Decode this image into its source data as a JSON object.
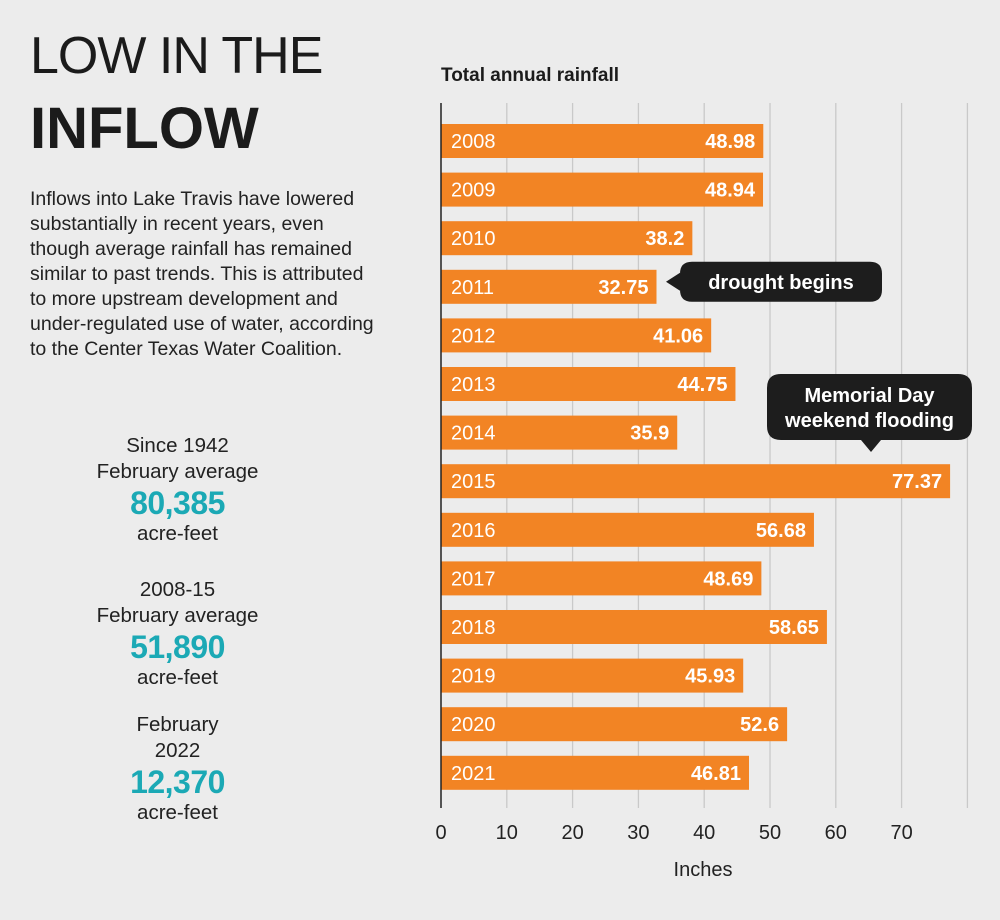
{
  "headline": {
    "line1": "LOW IN THE",
    "line2": "INFLOW"
  },
  "intro": "Inflows into Lake Travis have lowered substantially in recent years, even though average rainfall has remained similar to past trends. This is attributed to more upstream development and under-regulated use of water, according to the Center Texas Water Coalition.",
  "stats": [
    {
      "label": "Since 1942\nFebruary average",
      "value": "80,385",
      "unit": "acre-feet"
    },
    {
      "label": "2008-15\nFebruary average",
      "value": "51,890",
      "unit": "acre-feet"
    },
    {
      "label": "February\n2022",
      "value": "12,370",
      "unit": "acre-feet"
    }
  ],
  "colors": {
    "bar": "#f28424",
    "accent": "#1ba9b5",
    "callout": "#1d1d1d",
    "grid": "#c9c9c9"
  },
  "chart_data": {
    "type": "bar",
    "orientation": "horizontal",
    "title": "Total annual rainfall",
    "xlabel": "Inches",
    "categories": [
      "2008",
      "2009",
      "2010",
      "2011",
      "2012",
      "2013",
      "2014",
      "2015",
      "2016",
      "2017",
      "2018",
      "2019",
      "2020",
      "2021"
    ],
    "values": [
      48.98,
      48.94,
      38.2,
      32.75,
      41.06,
      44.75,
      35.9,
      77.37,
      56.68,
      48.69,
      58.65,
      45.93,
      52.6,
      46.81
    ],
    "value_labels": [
      "48.98",
      "48.94",
      "38.2",
      "32.75",
      "41.06",
      "44.75",
      "35.9",
      "77.37",
      "56.68",
      "48.69",
      "58.65",
      "45.93",
      "52.6",
      "46.81"
    ],
    "xlim": [
      0,
      80
    ],
    "xticks": [
      0,
      10,
      20,
      30,
      40,
      50,
      60,
      70,
      80
    ],
    "xtick_labels": [
      "0",
      "10",
      "20",
      "30",
      "40",
      "50",
      "60",
      "70",
      ""
    ],
    "grid": true,
    "annotations": [
      {
        "category": "2011",
        "text": "drought begins",
        "pointer": "left"
      },
      {
        "category": "2015",
        "text": "Memorial Day\nweekend flooding",
        "pointer": "down"
      }
    ]
  }
}
